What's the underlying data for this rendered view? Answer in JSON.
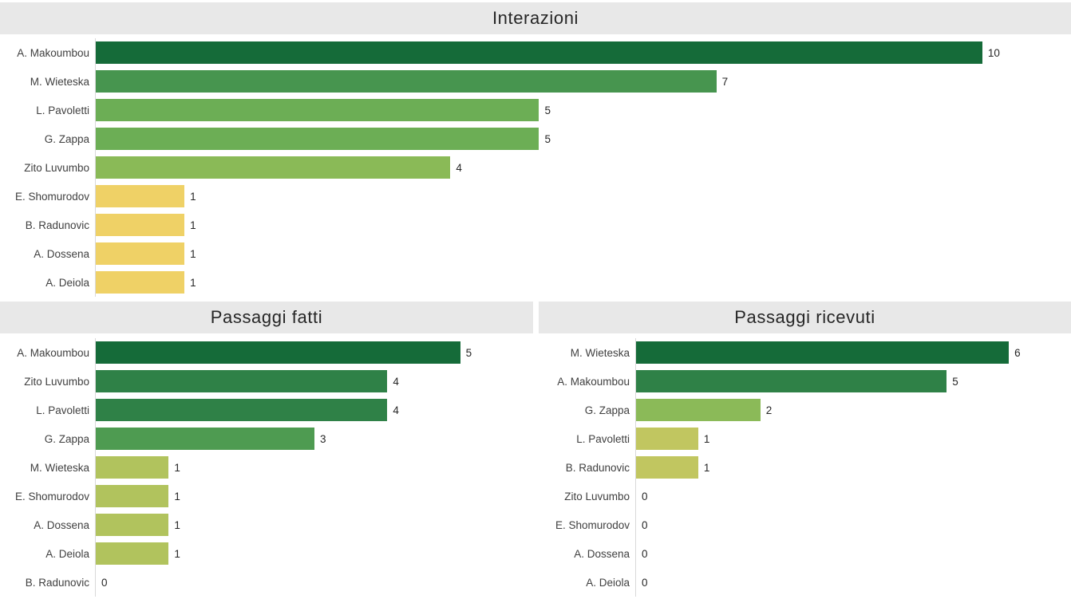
{
  "chart_data": [
    {
      "type": "bar",
      "orientation": "horizontal",
      "title": "Interazioni",
      "categories": [
        "A. Makoumbou",
        "M. Wieteska",
        "L. Pavoletti",
        "G. Zappa",
        "Zito Luvumbo",
        "E. Shomurodov",
        "B. Radunovic",
        "A. Dossena",
        "A. Deiola"
      ],
      "values": [
        10,
        7,
        5,
        5,
        4,
        1,
        1,
        1,
        1
      ],
      "bar_colors": [
        "#156b39",
        "#47954f",
        "#6cae55",
        "#6cae55",
        "#8aba57",
        "#efd166",
        "#efd166",
        "#efd166",
        "#efd166"
      ],
      "xlim": [
        0,
        11
      ],
      "value_labels_shown": true,
      "grid": false,
      "legend": false,
      "color_scale": {
        "low": "#efd166",
        "high": "#156b39",
        "maps_to": "value"
      }
    },
    {
      "type": "bar",
      "orientation": "horizontal",
      "title": "Passaggi fatti",
      "categories": [
        "A. Makoumbou",
        "Zito Luvumbo",
        "L. Pavoletti",
        "G. Zappa",
        "M. Wieteska",
        "E. Shomurodov",
        "A. Dossena",
        "A. Deiola",
        "B. Radunovic"
      ],
      "values": [
        5,
        4,
        4,
        3,
        1,
        1,
        1,
        1,
        0
      ],
      "bar_colors": [
        "#156b39",
        "#2f8147",
        "#2f8147",
        "#4e9b51",
        "#b1c35d",
        "#b1c35d",
        "#b1c35d",
        "#b1c35d",
        null
      ],
      "xlim": [
        0,
        6
      ],
      "value_labels_shown": true,
      "grid": false,
      "legend": false,
      "color_scale": {
        "low": "#b1c35d",
        "high": "#156b39",
        "maps_to": "value"
      }
    },
    {
      "type": "bar",
      "orientation": "horizontal",
      "title": "Passaggi ricevuti",
      "categories": [
        "M. Wieteska",
        "A. Makoumbou",
        "G. Zappa",
        "L. Pavoletti",
        "B. Radunovic",
        "Zito Luvumbo",
        "E. Shomurodov",
        "A. Dossena",
        "A. Deiola"
      ],
      "values": [
        6,
        5,
        2,
        1,
        1,
        0,
        0,
        0,
        0
      ],
      "bar_colors": [
        "#156b39",
        "#2f8147",
        "#8bba58",
        "#c1c660",
        "#c1c660",
        null,
        null,
        null,
        null
      ],
      "xlim": [
        0,
        7
      ],
      "value_labels_shown": true,
      "grid": false,
      "legend": false,
      "color_scale": {
        "low": "#c1c660",
        "high": "#156b39",
        "maps_to": "value"
      }
    }
  ],
  "colors": {
    "title_bar_background": "#e8e8e8",
    "title_text": "#262626",
    "label_text": "#404040",
    "value_text": "#262626",
    "axis_line": "#d9d9d9",
    "page_background": "#ffffff"
  }
}
